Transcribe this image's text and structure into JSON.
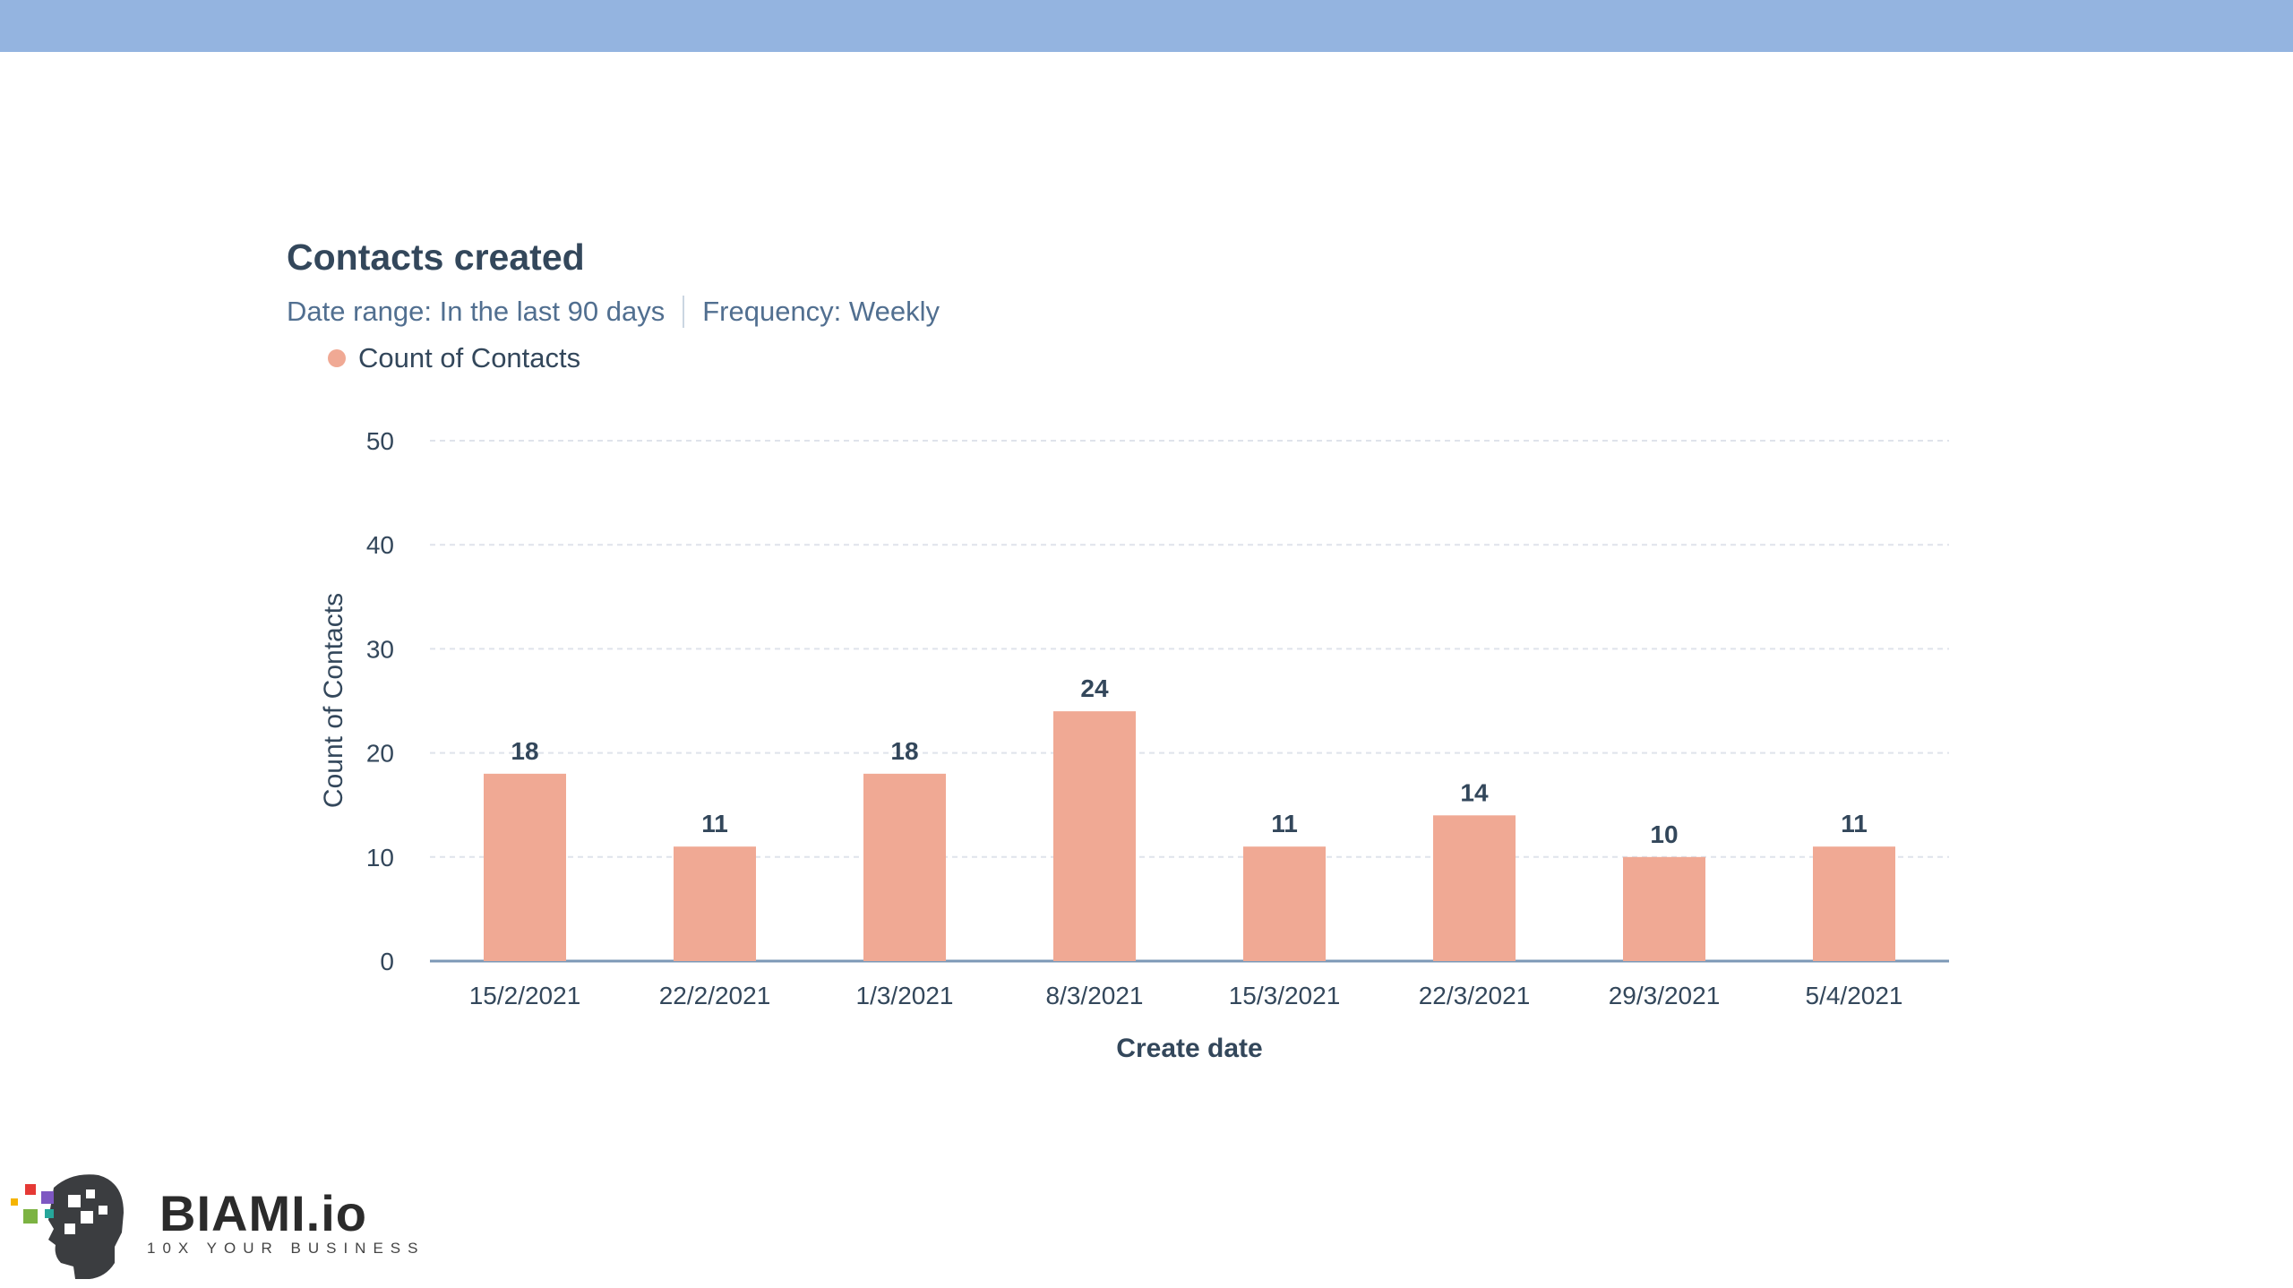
{
  "chart_data": {
    "type": "bar",
    "title": "Contacts created",
    "subtitle_date_range": "Date range: In the last 90 days",
    "subtitle_frequency": "Frequency: Weekly",
    "xlabel": "Create date",
    "ylabel": "Count of Contacts",
    "categories": [
      "15/2/2021",
      "22/2/2021",
      "1/3/2021",
      "8/3/2021",
      "15/3/2021",
      "22/3/2021",
      "29/3/2021",
      "5/4/2021"
    ],
    "series": [
      {
        "name": "Count of Contacts",
        "values": [
          18,
          11,
          18,
          24,
          11,
          14,
          10,
          11
        ],
        "color": "#f0a994"
      }
    ],
    "ylim": [
      0,
      50
    ],
    "yticks": [
      0,
      10,
      20,
      30,
      40,
      50
    ],
    "grid": true,
    "legend_position": "top-left",
    "data_labels": true
  },
  "colors": {
    "top_band": "#94b4e0",
    "title": "#33475b",
    "subtitle": "#516f90",
    "bar": "#f0a994",
    "grid": "#dfe3eb",
    "axis": "#7c98b6"
  },
  "branding": {
    "logo_icon": "biami-head-icon",
    "name": "BIAMI.io",
    "tagline": "10X YOUR BUSINESS"
  }
}
